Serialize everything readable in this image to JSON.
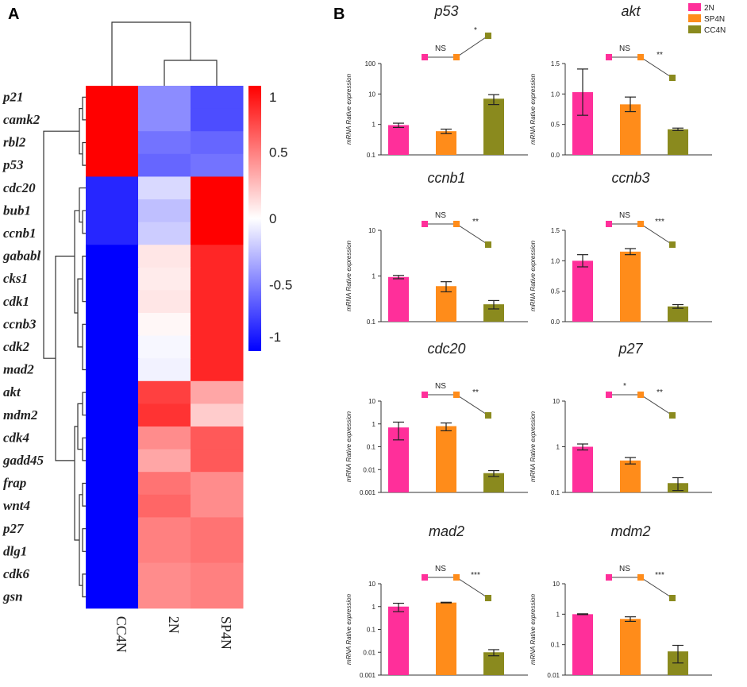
{
  "panels": {
    "a_label": "A",
    "b_label": "B"
  },
  "colors": {
    "n2": "#ff2f9a",
    "sp4n": "#ff8c1a",
    "cc4n": "#8a8a1e",
    "heat_high": "#ff0000",
    "heat_mid": "#ffffff",
    "heat_low": "#0000ff"
  },
  "legend": {
    "items": [
      {
        "label": "2N",
        "color": "#ff2f9a"
      },
      {
        "label": "SP4N",
        "color": "#ff8c1a"
      },
      {
        "label": "CC4N",
        "color": "#8a8a1e"
      }
    ]
  },
  "chart_data": [
    {
      "type": "heatmap",
      "columns": [
        "CC4N",
        "2N",
        "SP4N"
      ],
      "rows": [
        "p21",
        "camk2",
        "rbl2",
        "p53",
        "cdc20",
        "bub1",
        "ccnb1",
        "gababl",
        "cks1",
        "cdk1",
        "ccnb3",
        "cdk2",
        "mad2",
        "akt",
        "mdm2",
        "cdk4",
        "gadd45",
        "frap",
        "wnt4",
        "p27",
        "dlg1",
        "cdk6",
        "gsn"
      ],
      "values": [
        [
          1.0,
          -0.45,
          -0.7
        ],
        [
          1.0,
          -0.45,
          -0.7
        ],
        [
          1.0,
          -0.55,
          -0.6
        ],
        [
          1.0,
          -0.6,
          -0.55
        ],
        [
          -0.85,
          -0.15,
          1.0
        ],
        [
          -0.85,
          -0.25,
          1.0
        ],
        [
          -0.85,
          -0.2,
          1.0
        ],
        [
          -1.0,
          0.1,
          0.85
        ],
        [
          -1.0,
          0.08,
          0.85
        ],
        [
          -1.0,
          0.1,
          0.85
        ],
        [
          -1.0,
          0.03,
          0.85
        ],
        [
          -1.0,
          -0.03,
          0.85
        ],
        [
          -1.0,
          -0.05,
          0.85
        ],
        [
          -1.0,
          0.75,
          0.35
        ],
        [
          -1.0,
          0.8,
          0.2
        ],
        [
          -1.0,
          0.45,
          0.65
        ],
        [
          -1.0,
          0.35,
          0.65
        ],
        [
          -1.0,
          0.55,
          0.45
        ],
        [
          -1.0,
          0.6,
          0.45
        ],
        [
          -1.0,
          0.5,
          0.55
        ],
        [
          -1.0,
          0.5,
          0.55
        ],
        [
          -1.0,
          0.45,
          0.5
        ],
        [
          -1.0,
          0.45,
          0.5
        ]
      ],
      "colorbar": {
        "min": -1,
        "max": 1,
        "tick_labels": [
          "1",
          "0.5",
          "0",
          "-0.5",
          "-1"
        ]
      }
    },
    {
      "type": "bar",
      "title": "p53",
      "ylabel": "mRNA Rative expression",
      "scale": "log",
      "ylim": [
        0.1,
        100
      ],
      "yticks": [
        "100",
        "10",
        "1",
        "0.1"
      ],
      "categories": [
        "2N",
        "SP4N",
        "CC4N"
      ],
      "values": [
        0.95,
        0.6,
        7.0
      ],
      "errors": [
        0.15,
        0.1,
        2.5
      ],
      "sig": [
        "NS",
        "*"
      ]
    },
    {
      "type": "bar",
      "title": "akt",
      "ylabel": "mRNA Rative expression",
      "scale": "linear",
      "ylim": [
        0,
        1.5
      ],
      "yticks": [
        "1.5",
        "1.0",
        "0.5",
        "0.0"
      ],
      "categories": [
        "2N",
        "SP4N",
        "CC4N"
      ],
      "values": [
        1.03,
        0.83,
        0.42
      ],
      "errors": [
        0.38,
        0.12,
        0.02
      ],
      "sig": [
        "NS",
        "**"
      ]
    },
    {
      "type": "bar",
      "title": "ccnb1",
      "ylabel": "mRNA Rative expression",
      "scale": "log",
      "ylim": [
        0.1,
        10
      ],
      "yticks": [
        "10",
        "1",
        "0.1"
      ],
      "categories": [
        "2N",
        "SP4N",
        "CC4N"
      ],
      "values": [
        0.95,
        0.6,
        0.24
      ],
      "errors": [
        0.08,
        0.15,
        0.05
      ],
      "sig": [
        "NS",
        "**"
      ]
    },
    {
      "type": "bar",
      "title": "ccnb3",
      "ylabel": "mRNA Rative expression",
      "scale": "linear",
      "ylim": [
        0,
        1.5
      ],
      "yticks": [
        "1.5",
        "1.0",
        "0.5",
        "0.0"
      ],
      "categories": [
        "2N",
        "SP4N",
        "CC4N"
      ],
      "values": [
        1.0,
        1.15,
        0.25
      ],
      "errors": [
        0.1,
        0.05,
        0.03
      ],
      "sig": [
        "NS",
        "***"
      ]
    },
    {
      "type": "bar",
      "title": "cdc20",
      "ylabel": "mRNA Rative expression",
      "scale": "log",
      "ylim": [
        0.001,
        10
      ],
      "yticks": [
        "10",
        "1",
        "0.1",
        "0.01",
        "0.001"
      ],
      "categories": [
        "2N",
        "SP4N",
        "CC4N"
      ],
      "values": [
        0.7,
        0.8,
        0.007
      ],
      "errors": [
        0.5,
        0.3,
        0.002
      ],
      "sig": [
        "NS",
        "**"
      ]
    },
    {
      "type": "bar",
      "title": "p27",
      "ylabel": "mRNA Rative expression",
      "scale": "log",
      "ylim": [
        0.1,
        10
      ],
      "yticks": [
        "10",
        "1",
        "0.1"
      ],
      "categories": [
        "2N",
        "SP4N",
        "CC4N"
      ],
      "values": [
        1.0,
        0.5,
        0.16
      ],
      "errors": [
        0.15,
        0.08,
        0.05
      ],
      "sig": [
        "*",
        "**"
      ]
    },
    {
      "type": "bar",
      "title": "mad2",
      "ylabel": "mRNA Rative expression",
      "scale": "log",
      "ylim": [
        0.001,
        10
      ],
      "yticks": [
        "10",
        "1",
        "0.1",
        "0.01",
        "0.001"
      ],
      "categories": [
        "2N",
        "SP4N",
        "CC4N"
      ],
      "values": [
        1.0,
        1.5,
        0.01
      ],
      "errors": [
        0.4,
        0.05,
        0.003
      ],
      "sig": [
        "NS",
        "***"
      ]
    },
    {
      "type": "bar",
      "title": "mdm2",
      "ylabel": "mRNA Rative expression",
      "scale": "log",
      "ylim": [
        0.01,
        10
      ],
      "yticks": [
        "10",
        "1",
        "0.1",
        "0.01"
      ],
      "categories": [
        "2N",
        "SP4N",
        "CC4N"
      ],
      "values": [
        1.0,
        0.7,
        0.06
      ],
      "errors": [
        0.03,
        0.12,
        0.035
      ],
      "sig": [
        "NS",
        "***"
      ]
    }
  ]
}
